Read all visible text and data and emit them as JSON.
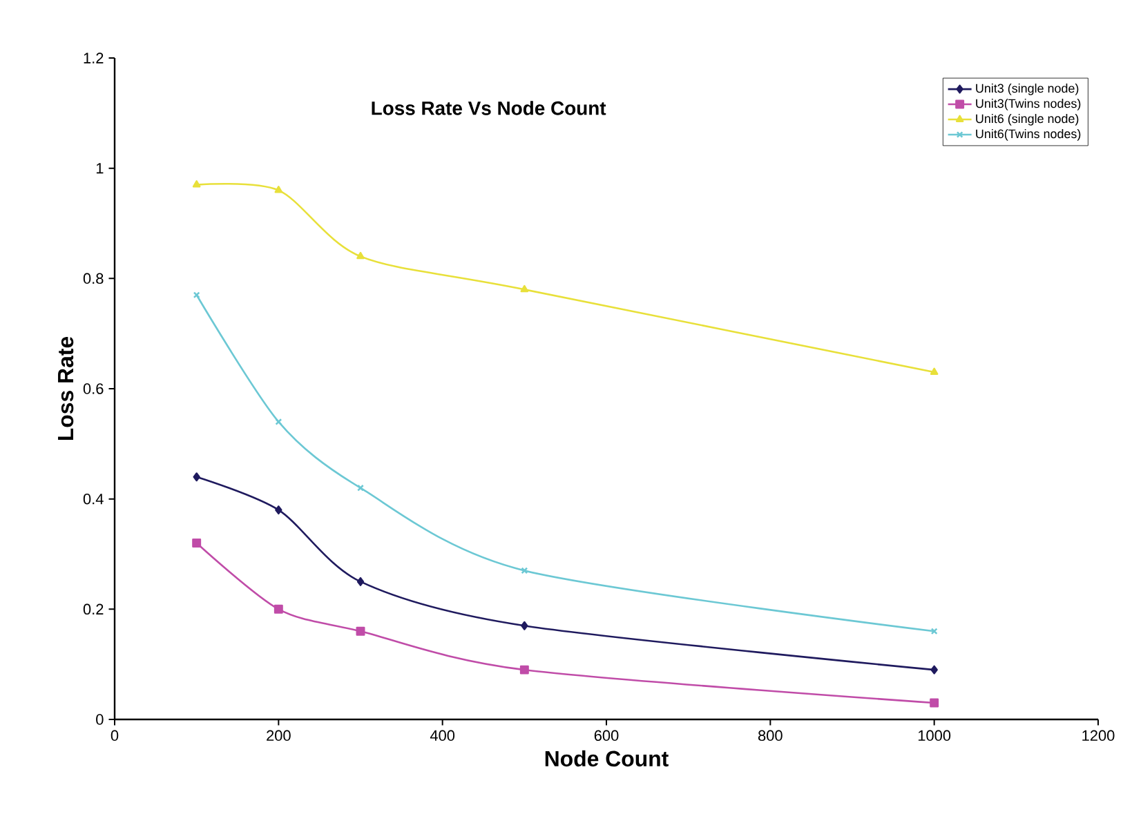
{
  "chart_data": {
    "type": "line",
    "title": "Loss Rate Vs Node Count",
    "xlabel": "Node Count",
    "ylabel": "Loss Rate",
    "x": [
      100,
      200,
      300,
      500,
      1000
    ],
    "series": [
      {
        "name": "Unit3 (single node)",
        "color": "#1f1a5e",
        "marker": "diamond",
        "values": [
          0.44,
          0.38,
          0.25,
          0.17,
          0.09
        ]
      },
      {
        "name": "Unit3(Twins nodes)",
        "color": "#c04ca8",
        "marker": "square",
        "values": [
          0.32,
          0.2,
          0.16,
          0.09,
          0.03
        ]
      },
      {
        "name": "Unit6 (single node)",
        "color": "#e8e03a",
        "marker": "triangle",
        "values": [
          0.97,
          0.96,
          0.84,
          0.78,
          0.63
        ]
      },
      {
        "name": "Unit6(Twins nodes)",
        "color": "#6cc8d4",
        "marker": "cross",
        "values": [
          0.77,
          0.54,
          0.42,
          0.27,
          0.16
        ]
      }
    ],
    "xlim": [
      0,
      1200
    ],
    "xticks": [
      0,
      200,
      400,
      600,
      800,
      1000,
      1200
    ],
    "ylim": [
      0,
      1.2
    ],
    "yticks": [
      0,
      0.2,
      0.4,
      0.6,
      0.8,
      1,
      1.2
    ],
    "grid": false,
    "legend": "top right",
    "line_style": "solid"
  }
}
